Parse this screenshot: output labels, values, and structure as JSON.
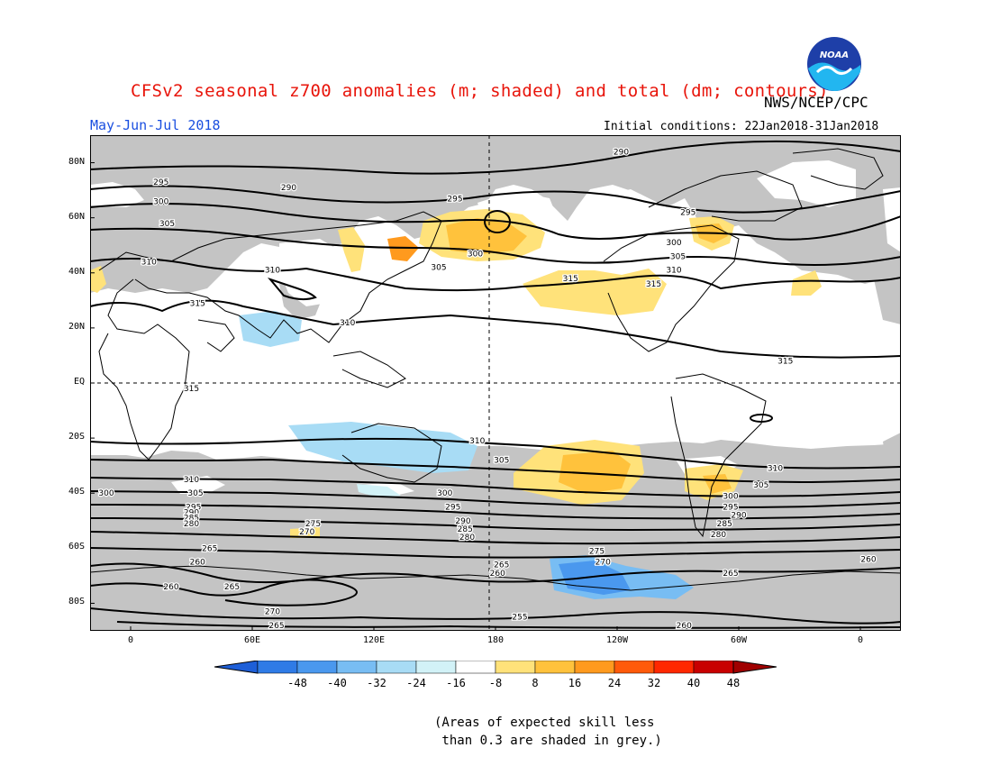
{
  "header": {
    "title": "CFSv2 seasonal z700 anomalies (m; shaded) and total (dm; contours)",
    "agency": "NWS/NCEP/CPC",
    "period": "May-Jun-Jul 2018",
    "initial_conditions": "Initial conditions: 22Jan2018-31Jan2018",
    "logo_text": "NOAA"
  },
  "axes": {
    "lat_labels": [
      {
        "label": "80N",
        "lat": 80
      },
      {
        "label": "60N",
        "lat": 60
      },
      {
        "label": "40N",
        "lat": 40
      },
      {
        "label": "20N",
        "lat": 20
      },
      {
        "label": "EQ",
        "lat": 0
      },
      {
        "label": "20S",
        "lat": -20
      },
      {
        "label": "40S",
        "lat": -40
      },
      {
        "label": "60S",
        "lat": -60
      },
      {
        "label": "80S",
        "lat": -80
      }
    ],
    "lon_labels": [
      {
        "label": "0",
        "lon": 0
      },
      {
        "label": "60E",
        "lon": 60
      },
      {
        "label": "120E",
        "lon": 120
      },
      {
        "label": "180",
        "lon": 180
      },
      {
        "label": "120W",
        "lon": 240
      },
      {
        "label": "60W",
        "lon": 300
      },
      {
        "label": "0",
        "lon": 360
      }
    ],
    "lon_range": [
      -20,
      380
    ],
    "lat_range": [
      -90,
      90
    ]
  },
  "colorbar": {
    "ticks": [
      "-48",
      "-40",
      "-32",
      "-24",
      "-16",
      "-8",
      "8",
      "16",
      "24",
      "32",
      "40",
      "48"
    ],
    "colors": [
      "#1e5fd8",
      "#2f7be6",
      "#4a98ee",
      "#78bdf3",
      "#a8dcf5",
      "#d2f2f7",
      "#ffffff",
      "#ffe27a",
      "#ffc23c",
      "#ff9a1e",
      "#ff5a0a",
      "#ff2800",
      "#c80000",
      "#a00000"
    ]
  },
  "legend_note": "(Areas of expected skill less\n than 0.3 are shaded in grey.)",
  "contour_labels": [
    {
      "text": "290",
      "lon": 242,
      "lat": 84
    },
    {
      "text": "295",
      "lon": 15,
      "lat": 73
    },
    {
      "text": "290",
      "lon": 78,
      "lat": 71
    },
    {
      "text": "295",
      "lon": 160,
      "lat": 67
    },
    {
      "text": "300",
      "lon": 15,
      "lat": 66
    },
    {
      "text": "305",
      "lon": 18,
      "lat": 58
    },
    {
      "text": "295",
      "lon": 275,
      "lat": 62
    },
    {
      "text": "300",
      "lon": 268,
      "lat": 51
    },
    {
      "text": "305",
      "lon": 270,
      "lat": 46
    },
    {
      "text": "310",
      "lon": 268,
      "lat": 41
    },
    {
      "text": "310",
      "lon": 9,
      "lat": 44
    },
    {
      "text": "310",
      "lon": 70,
      "lat": 41
    },
    {
      "text": "300",
      "lon": 170,
      "lat": 47
    },
    {
      "text": "305",
      "lon": 152,
      "lat": 42
    },
    {
      "text": "315",
      "lon": 217,
      "lat": 38
    },
    {
      "text": "315",
      "lon": 258,
      "lat": 36
    },
    {
      "text": "315",
      "lon": 33,
      "lat": 29
    },
    {
      "text": "310",
      "lon": 107,
      "lat": 22
    },
    {
      "text": "315",
      "lon": 323,
      "lat": 8
    },
    {
      "text": "315",
      "lon": 30,
      "lat": -2
    },
    {
      "text": "310",
      "lon": 171,
      "lat": -21
    },
    {
      "text": "305",
      "lon": 183,
      "lat": -28
    },
    {
      "text": "310",
      "lon": 318,
      "lat": -31
    },
    {
      "text": "305",
      "lon": 311,
      "lat": -37
    },
    {
      "text": "300",
      "lon": 296,
      "lat": -41
    },
    {
      "text": "295",
      "lon": 296,
      "lat": -45
    },
    {
      "text": "290",
      "lon": 300,
      "lat": -48
    },
    {
      "text": "285",
      "lon": 293,
      "lat": -51
    },
    {
      "text": "280",
      "lon": 290,
      "lat": -55
    },
    {
      "text": "310",
      "lon": 30,
      "lat": -35
    },
    {
      "text": "305",
      "lon": 32,
      "lat": -40
    },
    {
      "text": "300",
      "lon": -12,
      "lat": -40
    },
    {
      "text": "295",
      "lon": 31,
      "lat": -45
    },
    {
      "text": "290",
      "lon": 30,
      "lat": -47
    },
    {
      "text": "285",
      "lon": 30,
      "lat": -49
    },
    {
      "text": "280",
      "lon": 30,
      "lat": -51
    },
    {
      "text": "300",
      "lon": 155,
      "lat": -40
    },
    {
      "text": "295",
      "lon": 159,
      "lat": -45
    },
    {
      "text": "290",
      "lon": 164,
      "lat": -50
    },
    {
      "text": "285",
      "lon": 165,
      "lat": -53
    },
    {
      "text": "280",
      "lon": 166,
      "lat": -56
    },
    {
      "text": "275",
      "lon": 90,
      "lat": -51
    },
    {
      "text": "270",
      "lon": 87,
      "lat": -54
    },
    {
      "text": "275",
      "lon": 230,
      "lat": -61
    },
    {
      "text": "270",
      "lon": 233,
      "lat": -65
    },
    {
      "text": "265",
      "lon": 39,
      "lat": -60
    },
    {
      "text": "260",
      "lon": 33,
      "lat": -65
    },
    {
      "text": "265",
      "lon": 183,
      "lat": -66
    },
    {
      "text": "260",
      "lon": 181,
      "lat": -69
    },
    {
      "text": "265",
      "lon": 296,
      "lat": -69
    },
    {
      "text": "260",
      "lon": 364,
      "lat": -64
    },
    {
      "text": "260",
      "lon": 20,
      "lat": -74
    },
    {
      "text": "265",
      "lon": 50,
      "lat": -74
    },
    {
      "text": "270",
      "lon": 70,
      "lat": -83
    },
    {
      "text": "265",
      "lon": 72,
      "lat": -88
    },
    {
      "text": "255",
      "lon": 192,
      "lat": -85
    },
    {
      "text": "260",
      "lon": 273,
      "lat": -88
    }
  ]
}
